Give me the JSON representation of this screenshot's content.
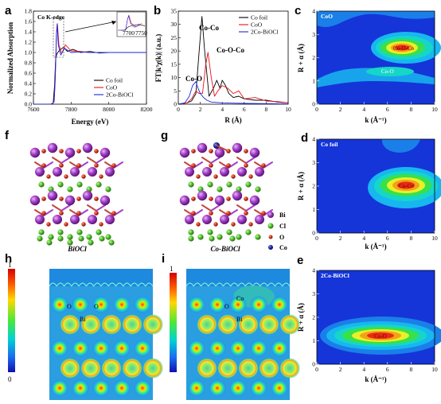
{
  "panels": {
    "a": {
      "letter": "a",
      "title": "Co K-edge",
      "ylabel": "Normalized Absorption",
      "xlabel": "Energy (eV)",
      "xticks": [
        "7600",
        "7800",
        "8000",
        "8200"
      ],
      "yticks": [
        "0.0",
        "0.2",
        "0.4",
        "0.6",
        "0.8",
        "1.0",
        "1.2",
        "1.4",
        "1.6",
        "1.8"
      ],
      "inset_ticks": [
        "7700",
        "7750"
      ],
      "legend": [
        "Co foil",
        "CoO",
        "2Co-BiOCl"
      ]
    },
    "b": {
      "letter": "b",
      "ylabel": "FT|k³χ(k)| (a.u.)",
      "xlabel": "R (Å)",
      "xticks": [
        "0",
        "2",
        "4",
        "6",
        "8",
        "10"
      ],
      "yticks": [
        "0",
        "5",
        "10",
        "15",
        "20",
        "25",
        "30",
        "35"
      ],
      "legend": [
        "Co foil",
        "CoO",
        "2Co-BiOCl"
      ],
      "annotations": [
        "Co-Co",
        "Co-O-Co",
        "Co-O"
      ]
    },
    "c": {
      "letter": "c",
      "inner": "CoO",
      "labels": [
        "Co-O-Co",
        "Co-O"
      ]
    },
    "d": {
      "letter": "d",
      "inner": "Co foil",
      "labels": [
        "Co-Co"
      ]
    },
    "e": {
      "letter": "e",
      "inner": "2Co-BiOCl",
      "labels": [
        "Co-O"
      ]
    },
    "wt": {
      "ylabel": "R + α (Å)",
      "xlabel": "k (Å⁻¹)",
      "xticks": [
        "0",
        "2",
        "4",
        "6",
        "8",
        "10"
      ],
      "yticks": [
        "0",
        "1",
        "2",
        "3",
        "4"
      ]
    },
    "f": {
      "letter": "f",
      "caption": "BiOCl"
    },
    "g": {
      "letter": "g",
      "caption": "Co-BiOCl",
      "legend": [
        "Bi",
        "Cl",
        "O",
        "Co"
      ]
    },
    "h": {
      "letter": "h",
      "cb_top": "1",
      "cb_bottom": "0",
      "labels": [
        "O",
        "O",
        "Bi"
      ]
    },
    "i": {
      "letter": "i",
      "cb_top": "1",
      "labels": [
        "Co",
        "O",
        "Bi"
      ]
    }
  },
  "colors": {
    "co_foil": "#000000",
    "coo": "#e8121b",
    "bioc": "#1826e6",
    "bi_atom": "#a43fc8",
    "cl_atom": "#52c22c",
    "o_atom": "#d9341c",
    "co_atom": "#1a2a9e",
    "wt_background": "#1535d8"
  },
  "chart_data": [
    {
      "panel": "a",
      "type": "line",
      "title": "Co K-edge",
      "xlabel": "Energy (eV)",
      "ylabel": "Normalized Absorption",
      "xlim": [
        7600,
        8200
      ],
      "ylim": [
        0.0,
        1.8
      ],
      "series": [
        {
          "name": "Co foil",
          "x": [
            7600,
            7690,
            7705,
            7712,
            7718,
            7725,
            7740,
            7760,
            7780,
            7810,
            7850,
            7900,
            7950,
            8000,
            8100,
            8200
          ],
          "y": [
            0,
            0,
            0.02,
            0.35,
            0.88,
            0.98,
            1.05,
            1.1,
            1.02,
            1.06,
            1.0,
            1.02,
            0.99,
            1.0,
            1.0,
            1.0
          ]
        },
        {
          "name": "CoO",
          "x": [
            7600,
            7700,
            7708,
            7712,
            7716,
            7722,
            7727,
            7735,
            7750,
            7770,
            7800,
            7850,
            7900,
            8000,
            8100,
            8200
          ],
          "y": [
            0,
            0,
            0.05,
            0.2,
            0.6,
            1.35,
            1.56,
            1.15,
            0.98,
            1.15,
            1.03,
            1.02,
            1.0,
            1.0,
            1.0,
            1.0
          ]
        },
        {
          "name": "2Co-BiOCl",
          "x": [
            7600,
            7700,
            7710,
            7716,
            7722,
            7726,
            7732,
            7745,
            7765,
            7800,
            7850,
            7900,
            8000,
            8100,
            8200
          ],
          "y": [
            0,
            0,
            0.05,
            0.5,
            1.35,
            1.55,
            1.15,
            0.95,
            1.08,
            1.0,
            1.01,
            1.0,
            1.0,
            1.0,
            1.0
          ]
        }
      ]
    },
    {
      "panel": "b",
      "type": "line",
      "xlabel": "R (Å)",
      "ylabel": "FT|k³χ(k)| (a.u.)",
      "xlim": [
        0,
        10
      ],
      "ylim": [
        0,
        35
      ],
      "series": [
        {
          "name": "Co foil",
          "x": [
            0,
            0.8,
            1.2,
            1.6,
            1.9,
            2.15,
            2.4,
            2.8,
            3.2,
            3.5,
            3.8,
            4.0,
            4.3,
            4.6,
            5.0,
            5.5,
            6.0,
            7.0,
            8.0,
            9.0,
            10.0
          ],
          "y": [
            0,
            0.5,
            1.2,
            4,
            20,
            33,
            20,
            3,
            6,
            9,
            6,
            9,
            7,
            4,
            2.5,
            3,
            2,
            1.5,
            1.5,
            0.8,
            0.5
          ]
        },
        {
          "name": "CoO",
          "x": [
            0,
            0.8,
            1.2,
            1.6,
            1.9,
            2.2,
            2.5,
            2.7,
            3.0,
            3.3,
            3.6,
            4.0,
            4.5,
            5.0,
            5.5,
            6.0,
            7.0,
            8.0,
            9.0,
            10.0
          ],
          "y": [
            0,
            0.5,
            2,
            5,
            4,
            4,
            15,
            19.5,
            10,
            3,
            5,
            7,
            6,
            4,
            5,
            2,
            2.5,
            1.2,
            1.0,
            0.5
          ]
        },
        {
          "name": "2Co-BiOCl",
          "x": [
            0,
            0.6,
            1.0,
            1.3,
            1.6,
            1.8,
            2.0,
            2.3,
            2.6,
            3.0,
            4.0,
            5.0,
            6.0,
            8.0,
            10.0
          ],
          "y": [
            0,
            0.5,
            3,
            7,
            8.5,
            6,
            4,
            2.5,
            1.5,
            0.8,
            0.5,
            0.4,
            0.3,
            0.2,
            0.1
          ]
        }
      ]
    },
    {
      "panel": "c",
      "type": "heatmap",
      "title": "CoO",
      "xlabel": "k (Å⁻¹)",
      "ylabel": "R + α (Å)",
      "xlim": [
        0,
        10
      ],
      "ylim": [
        0,
        4
      ],
      "features": [
        {
          "label": "Co-O-Co",
          "k": 7.0,
          "r": 2.6
        },
        {
          "label": "Co-O",
          "k": 6.0,
          "r": 1.6
        }
      ]
    },
    {
      "panel": "d",
      "type": "heatmap",
      "title": "Co foil",
      "xlabel": "k (Å⁻¹)",
      "ylabel": "R + α (Å)",
      "xlim": [
        0,
        10
      ],
      "ylim": [
        0,
        4
      ],
      "features": [
        {
          "label": "Co-Co",
          "k": 7.0,
          "r": 2.2
        }
      ]
    },
    {
      "panel": "e",
      "type": "heatmap",
      "title": "2Co-BiOCl",
      "xlabel": "k (Å⁻¹)",
      "ylabel": "R + α (Å)",
      "xlim": [
        0,
        10
      ],
      "ylim": [
        0,
        4
      ],
      "features": [
        {
          "label": "Co-O",
          "k": 6.0,
          "r": 1.6
        }
      ]
    }
  ]
}
